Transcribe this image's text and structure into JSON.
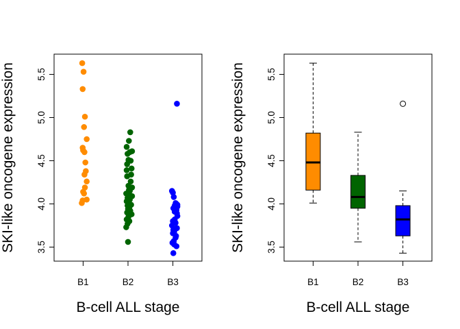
{
  "chart_data": [
    {
      "type": "scatter",
      "title": "",
      "xlabel": "B-cell ALL stage",
      "ylabel": "SKI-like oncogene expression",
      "categories": [
        "B1",
        "B2",
        "B3"
      ],
      "ylim": [
        3.35,
        5.72
      ],
      "yticks": [
        "3.5",
        "4.0",
        "4.5",
        "5.0",
        "5.5"
      ],
      "grid": false,
      "series": [
        {
          "category": "B1",
          "color": "#FF8C00",
          "points": [
            {
              "x": 0.98,
              "y": 5.63
            },
            {
              "x": 1.01,
              "y": 5.53
            },
            {
              "x": 0.99,
              "y": 5.33
            },
            {
              "x": 1.04,
              "y": 5.01
            },
            {
              "x": 1.02,
              "y": 4.89
            },
            {
              "x": 1.08,
              "y": 4.75
            },
            {
              "x": 0.99,
              "y": 4.65
            },
            {
              "x": 1.0,
              "y": 4.62
            },
            {
              "x": 1.03,
              "y": 4.6
            },
            {
              "x": 1.05,
              "y": 4.48
            },
            {
              "x": 1.06,
              "y": 4.38
            },
            {
              "x": 1.03,
              "y": 4.34
            },
            {
              "x": 1.08,
              "y": 4.26
            },
            {
              "x": 1.04,
              "y": 4.19
            },
            {
              "x": 1.0,
              "y": 4.14
            },
            {
              "x": 1.02,
              "y": 4.12
            },
            {
              "x": 1.08,
              "y": 4.05
            },
            {
              "x": 0.99,
              "y": 4.04
            },
            {
              "x": 0.97,
              "y": 4.01
            }
          ]
        },
        {
          "category": "B2",
          "color": "#006400",
          "points": [
            {
              "x": 2.05,
              "y": 4.83
            },
            {
              "x": 2.02,
              "y": 4.73
            },
            {
              "x": 1.97,
              "y": 4.66
            },
            {
              "x": 2.09,
              "y": 4.61
            },
            {
              "x": 2.04,
              "y": 4.6
            },
            {
              "x": 1.99,
              "y": 4.58
            },
            {
              "x": 2.01,
              "y": 4.51
            },
            {
              "x": 2.06,
              "y": 4.5
            },
            {
              "x": 1.98,
              "y": 4.46
            },
            {
              "x": 2.08,
              "y": 4.41
            },
            {
              "x": 1.97,
              "y": 4.39
            },
            {
              "x": 2.07,
              "y": 4.34
            },
            {
              "x": 1.98,
              "y": 4.32
            },
            {
              "x": 2.06,
              "y": 4.26
            },
            {
              "x": 2.01,
              "y": 4.21
            },
            {
              "x": 2.09,
              "y": 4.19
            },
            {
              "x": 2.02,
              "y": 4.16
            },
            {
              "x": 2.04,
              "y": 4.15
            },
            {
              "x": 1.96,
              "y": 4.12
            },
            {
              "x": 2.03,
              "y": 4.1
            },
            {
              "x": 2.09,
              "y": 4.09
            },
            {
              "x": 1.99,
              "y": 4.07
            },
            {
              "x": 2.04,
              "y": 4.05
            },
            {
              "x": 1.97,
              "y": 4.03
            },
            {
              "x": 2.02,
              "y": 4.01
            },
            {
              "x": 2.07,
              "y": 3.99
            },
            {
              "x": 1.99,
              "y": 3.98
            },
            {
              "x": 2.03,
              "y": 3.96
            },
            {
              "x": 2.0,
              "y": 3.94
            },
            {
              "x": 2.05,
              "y": 3.92
            },
            {
              "x": 1.98,
              "y": 3.9
            },
            {
              "x": 2.08,
              "y": 3.88
            },
            {
              "x": 2.01,
              "y": 3.85
            },
            {
              "x": 1.97,
              "y": 3.82
            },
            {
              "x": 2.03,
              "y": 3.8
            },
            {
              "x": 1.99,
              "y": 3.77
            },
            {
              "x": 1.96,
              "y": 3.73
            },
            {
              "x": 2.0,
              "y": 3.56
            }
          ]
        },
        {
          "category": "B3",
          "color": "#0000FF",
          "points": [
            {
              "x": 3.09,
              "y": 5.16
            },
            {
              "x": 2.98,
              "y": 4.15
            },
            {
              "x": 3.0,
              "y": 4.13
            },
            {
              "x": 3.02,
              "y": 4.08
            },
            {
              "x": 3.06,
              "y": 4.01
            },
            {
              "x": 3.08,
              "y": 4.0
            },
            {
              "x": 3.1,
              "y": 3.99
            },
            {
              "x": 3.04,
              "y": 3.98
            },
            {
              "x": 3.1,
              "y": 3.97
            },
            {
              "x": 3.01,
              "y": 3.95
            },
            {
              "x": 3.08,
              "y": 3.93
            },
            {
              "x": 3.04,
              "y": 3.91
            },
            {
              "x": 3.09,
              "y": 3.89
            },
            {
              "x": 3.1,
              "y": 3.86
            },
            {
              "x": 3.04,
              "y": 3.82
            },
            {
              "x": 3.0,
              "y": 3.8
            },
            {
              "x": 3.06,
              "y": 3.78
            },
            {
              "x": 2.98,
              "y": 3.75
            },
            {
              "x": 3.09,
              "y": 3.72
            },
            {
              "x": 3.01,
              "y": 3.7
            },
            {
              "x": 3.03,
              "y": 3.68
            },
            {
              "x": 3.0,
              "y": 3.66
            },
            {
              "x": 3.07,
              "y": 3.63
            },
            {
              "x": 3.06,
              "y": 3.61
            },
            {
              "x": 3.02,
              "y": 3.57
            },
            {
              "x": 2.99,
              "y": 3.55
            },
            {
              "x": 3.03,
              "y": 3.53
            },
            {
              "x": 3.08,
              "y": 3.51
            },
            {
              "x": 3.01,
              "y": 3.43
            }
          ]
        }
      ]
    },
    {
      "type": "box",
      "title": "",
      "xlabel": "B-cell ALL stage",
      "ylabel": "SKI-like oncogene expression",
      "categories": [
        "B1",
        "B2",
        "B3"
      ],
      "ylim": [
        3.35,
        5.72
      ],
      "yticks": [
        "3.5",
        "4.0",
        "4.5",
        "5.0",
        "5.5"
      ],
      "grid": false,
      "boxes": [
        {
          "category": "B1",
          "color": "#FF8C00",
          "whisker_low": 4.01,
          "q1": 4.16,
          "median": 4.48,
          "q3": 4.82,
          "whisker_high": 5.63,
          "outliers": []
        },
        {
          "category": "B2",
          "color": "#006400",
          "whisker_low": 3.56,
          "q1": 3.95,
          "median": 4.08,
          "q3": 4.33,
          "whisker_high": 4.83,
          "outliers": []
        },
        {
          "category": "B3",
          "color": "#0000FF",
          "whisker_low": 3.43,
          "q1": 3.63,
          "median": 3.82,
          "q3": 3.98,
          "whisker_high": 4.15,
          "outliers": [
            5.16
          ]
        }
      ]
    }
  ]
}
